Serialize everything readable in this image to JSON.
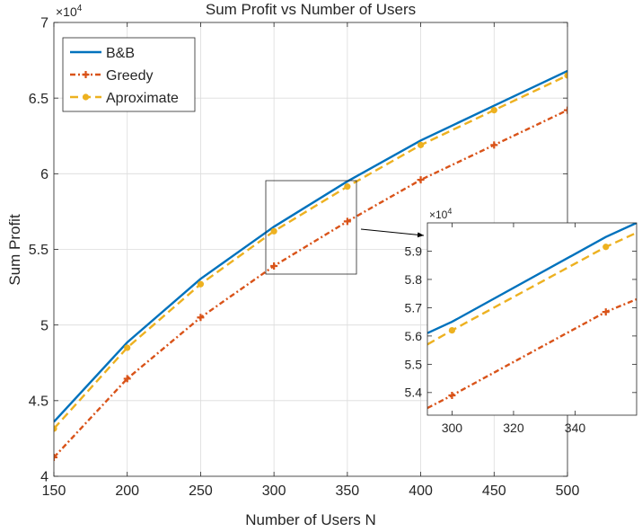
{
  "chart_data": [
    {
      "type": "line",
      "title": "Sum Profit vs Number of Users",
      "xlabel": "Number of Users N",
      "ylabel": "Sum Profit",
      "y_exponent_label": "×10",
      "y_exponent_power": "4",
      "xlim": [
        150,
        500
      ],
      "ylim": [
        40000,
        70000
      ],
      "x_ticks": [
        150,
        200,
        250,
        300,
        350,
        400,
        450,
        500
      ],
      "x_tick_labels": [
        "150",
        "200",
        "250",
        "300",
        "350",
        "400",
        "450",
        "500"
      ],
      "y_ticks": [
        40000,
        45000,
        50000,
        55000,
        60000,
        65000,
        70000
      ],
      "y_tick_labels": [
        "4",
        "4.5",
        "5",
        "5.5",
        "6",
        "6.5",
        "7"
      ],
      "grid": true,
      "legend_position": "top-left",
      "x": [
        150,
        200,
        250,
        300,
        350,
        400,
        450,
        500
      ],
      "series": [
        {
          "name": "B&B",
          "color": "#0072BD",
          "style": "solid",
          "marker": "none",
          "values": [
            43600,
            48850,
            53050,
            56500,
            59500,
            62200,
            64500,
            66800
          ]
        },
        {
          "name": "Greedy",
          "color": "#D95319",
          "style": "dashdot",
          "marker": "plus",
          "values": [
            41250,
            46450,
            50500,
            53900,
            56850,
            59600,
            61900,
            64200
          ]
        },
        {
          "name": "Aproximate",
          "color": "#EDB120",
          "style": "dashed",
          "marker": "dot",
          "values": [
            43150,
            48500,
            52700,
            56200,
            59150,
            61900,
            64200,
            66500
          ]
        }
      ]
    },
    {
      "type": "line",
      "title": "",
      "xlabel": "",
      "ylabel": "",
      "y_exponent_label": "×10",
      "y_exponent_power": "4",
      "xlim": [
        292,
        360
      ],
      "ylim": [
        53200,
        60000
      ],
      "x_ticks": [
        300,
        320,
        340
      ],
      "x_tick_labels": [
        "300",
        "320",
        "340"
      ],
      "y_ticks": [
        54000,
        55000,
        56000,
        57000,
        58000,
        59000
      ],
      "y_tick_labels": [
        "5.4",
        "5.5",
        "5.6",
        "5.7",
        "5.8",
        "5.9"
      ],
      "grid": false,
      "x": [
        292,
        300,
        350,
        360
      ],
      "series": [
        {
          "name": "B&B",
          "color": "#0072BD",
          "style": "solid",
          "marker": "none",
          "values": [
            56100,
            56500,
            59500,
            60000
          ]
        },
        {
          "name": "Greedy",
          "color": "#D95319",
          "style": "dashdot",
          "marker": "plus",
          "values": [
            53450,
            53900,
            56850,
            57300
          ]
        },
        {
          "name": "Aproximate",
          "color": "#EDB120",
          "style": "dashed",
          "marker": "dot",
          "values": [
            55700,
            56200,
            59150,
            59650
          ]
        }
      ],
      "marker_x": [
        300,
        350
      ]
    }
  ]
}
